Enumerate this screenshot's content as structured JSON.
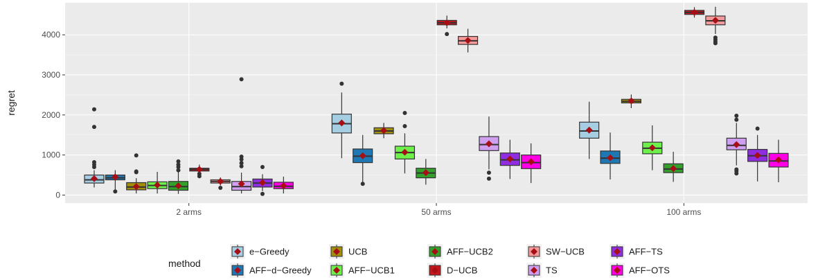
{
  "chart_data": {
    "type": "boxplot",
    "categories": [
      "2 arms",
      "50 arms",
      "100 arms"
    ],
    "xlabel": "",
    "ylabel": "regret",
    "ylim": [
      -200,
      4800
    ],
    "yticks": [
      0,
      1000,
      2000,
      3000,
      4000
    ],
    "grid": true,
    "legend": {
      "title": "method",
      "position": "bottom",
      "rows": 2
    },
    "series": [
      {
        "name": "e−Greedy",
        "color": "#a6cee3",
        "boxes": [
          {
            "min": 190,
            "q1": 300,
            "median": 380,
            "q3": 500,
            "max": 620,
            "mean": 410,
            "outliers": [
              2140,
              1700,
              820,
              760,
              700
            ]
          },
          {
            "min": 920,
            "q1": 1550,
            "median": 1780,
            "q3": 2020,
            "max": 2560,
            "mean": 1800,
            "outliers": [
              2780
            ]
          },
          {
            "min": 900,
            "q1": 1420,
            "median": 1600,
            "q3": 1820,
            "max": 2330,
            "mean": 1620,
            "outliers": []
          }
        ]
      },
      {
        "name": "AFF−d−Greedy",
        "color": "#1f78b4",
        "boxes": [
          {
            "min": 80,
            "q1": 380,
            "median": 430,
            "q3": 500,
            "max": 620,
            "mean": 450,
            "outliers": [
              90
            ]
          },
          {
            "min": 290,
            "q1": 810,
            "median": 970,
            "q3": 1150,
            "max": 1500,
            "mean": 980,
            "outliers": [
              280
            ]
          },
          {
            "min": 390,
            "q1": 790,
            "median": 920,
            "q3": 1100,
            "max": 1560,
            "mean": 930,
            "outliers": []
          }
        ]
      },
      {
        "name": "UCB",
        "color": "#a08e0c",
        "boxes": [
          {
            "min": 40,
            "q1": 130,
            "median": 200,
            "q3": 310,
            "max": 420,
            "mean": 210,
            "outliers": [
              990,
              590,
              570
            ]
          },
          {
            "min": 1420,
            "q1": 1530,
            "median": 1600,
            "q3": 1680,
            "max": 1800,
            "mean": 1610,
            "outliers": []
          },
          {
            "min": 2170,
            "q1": 2300,
            "median": 2340,
            "q3": 2390,
            "max": 2510,
            "mean": 2350,
            "outliers": []
          }
        ]
      },
      {
        "name": "AFF−UCB1",
        "color": "#6ef04b",
        "boxes": [
          {
            "min": 40,
            "q1": 160,
            "median": 240,
            "q3": 330,
            "max": 580,
            "mean": 250,
            "outliers": []
          },
          {
            "min": 540,
            "q1": 900,
            "median": 1060,
            "q3": 1220,
            "max": 1540,
            "mean": 1070,
            "outliers": [
              2050,
              1720
            ]
          },
          {
            "min": 620,
            "q1": 1030,
            "median": 1170,
            "q3": 1320,
            "max": 1740,
            "mean": 1180,
            "outliers": []
          }
        ]
      },
      {
        "name": "AFF−UCB2",
        "color": "#33a02c",
        "boxes": [
          {
            "min": 30,
            "q1": 120,
            "median": 210,
            "q3": 340,
            "max": 580,
            "mean": 230,
            "outliers": [
              840,
              760,
              700,
              620
            ]
          },
          {
            "min": 260,
            "q1": 430,
            "median": 550,
            "q3": 670,
            "max": 900,
            "mean": 560,
            "outliers": []
          },
          {
            "min": 330,
            "q1": 560,
            "median": 650,
            "q3": 780,
            "max": 1080,
            "mean": 660,
            "outliers": []
          }
        ]
      },
      {
        "name": "D−UCB",
        "color": "#c4161c",
        "boxes": [
          {
            "min": 560,
            "q1": 600,
            "median": 640,
            "q3": 670,
            "max": 760,
            "mean": 640,
            "outliers": [
              530,
              470
            ]
          },
          {
            "min": 4160,
            "q1": 4250,
            "median": 4300,
            "q3": 4360,
            "max": 4480,
            "mean": 4300,
            "outliers": [
              4020
            ]
          },
          {
            "min": 4430,
            "q1": 4510,
            "median": 4560,
            "q3": 4610,
            "max": 4690,
            "mean": 4560,
            "outliers": []
          }
        ]
      },
      {
        "name": "SW−UCB",
        "color": "#f59a9a",
        "boxes": [
          {
            "min": 240,
            "q1": 300,
            "median": 340,
            "q3": 380,
            "max": 440,
            "mean": 340,
            "outliers": [
              180
            ]
          },
          {
            "min": 3560,
            "q1": 3760,
            "median": 3850,
            "q3": 3960,
            "max": 4150,
            "mean": 3860,
            "outliers": []
          },
          {
            "min": 4020,
            "q1": 4250,
            "median": 4350,
            "q3": 4470,
            "max": 4700,
            "mean": 4360,
            "outliers": [
              3930,
              3880,
              3830,
              3790
            ]
          }
        ]
      },
      {
        "name": "TS",
        "color": "#cf9ff0",
        "boxes": [
          {
            "min": 40,
            "q1": 120,
            "median": 210,
            "q3": 340,
            "max": 560,
            "mean": 280,
            "outliers": [
              2890,
              960,
              890,
              800,
              720
            ]
          },
          {
            "min": 640,
            "q1": 1110,
            "median": 1260,
            "q3": 1460,
            "max": 1960,
            "mean": 1280,
            "outliers": [
              560,
              410
            ]
          },
          {
            "min": 740,
            "q1": 1130,
            "median": 1240,
            "q3": 1420,
            "max": 1800,
            "mean": 1260,
            "outliers": [
              1980,
              1880,
              640,
              600,
              540
            ]
          }
        ]
      },
      {
        "name": "AFF−TS",
        "color": "#8e2ee0",
        "boxes": [
          {
            "min": 100,
            "q1": 200,
            "median": 300,
            "q3": 400,
            "max": 520,
            "mean": 310,
            "outliers": [
              700,
              30
            ]
          },
          {
            "min": 400,
            "q1": 740,
            "median": 880,
            "q3": 1050,
            "max": 1380,
            "mean": 900,
            "outliers": []
          },
          {
            "min": 340,
            "q1": 840,
            "median": 980,
            "q3": 1140,
            "max": 1500,
            "mean": 990,
            "outliers": [
              1660
            ]
          }
        ]
      },
      {
        "name": "AFF−OTS",
        "color": "#ff00e6",
        "boxes": [
          {
            "min": 40,
            "q1": 160,
            "median": 220,
            "q3": 320,
            "max": 460,
            "mean": 230,
            "outliers": []
          },
          {
            "min": 300,
            "q1": 660,
            "median": 810,
            "q3": 1000,
            "max": 1290,
            "mean": 830,
            "outliers": []
          },
          {
            "min": 320,
            "q1": 700,
            "median": 850,
            "q3": 1040,
            "max": 1380,
            "mean": 880,
            "outliers": []
          }
        ]
      }
    ],
    "legend_order": [
      "e−Greedy",
      "AFF−d−Greedy",
      "UCB",
      "AFF−UCB1",
      "AFF−UCB2",
      "D−UCB",
      "SW−UCB",
      "TS",
      "AFF−TS",
      "AFF−OTS"
    ]
  }
}
